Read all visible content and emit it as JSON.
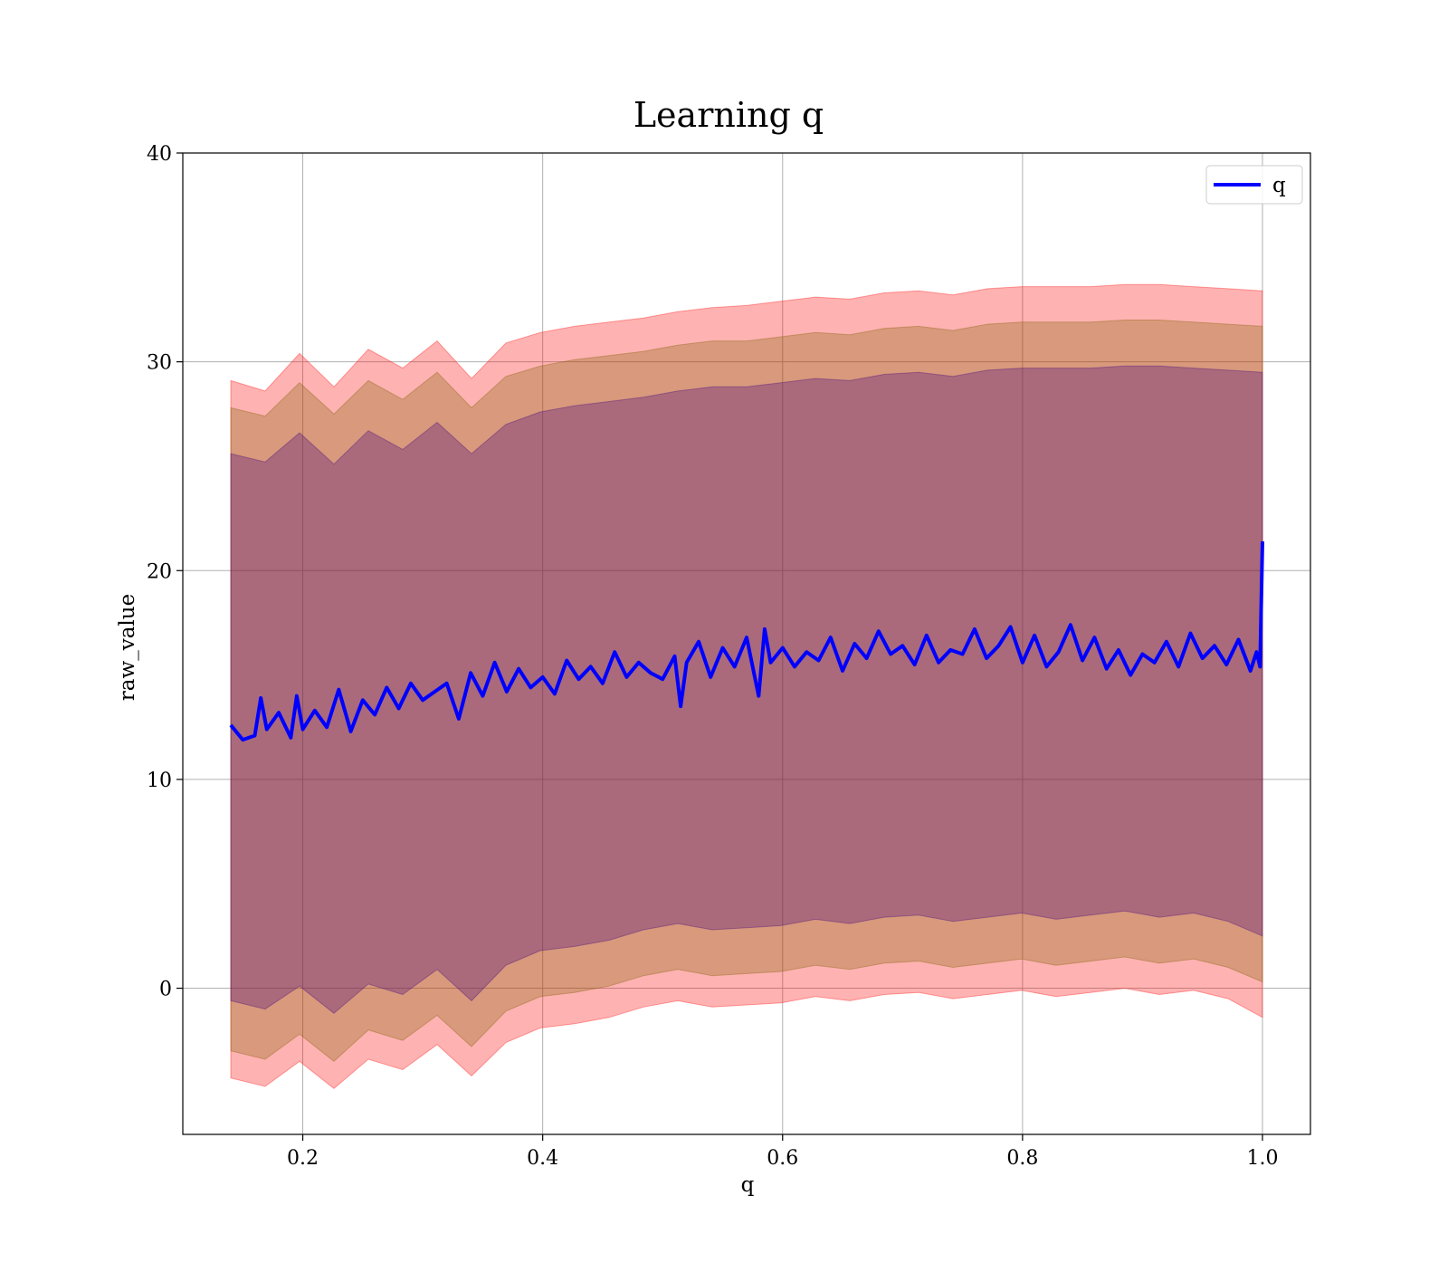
{
  "chart_data": {
    "type": "line",
    "title": "Learning q",
    "xlabel": "q",
    "ylabel": "raw_value",
    "xlim": [
      0.1,
      1.04
    ],
    "ylim": [
      -7,
      40
    ],
    "xticks": [
      0.2,
      0.4,
      0.6,
      0.8,
      1.0
    ],
    "xtick_labels": [
      "0.2",
      "0.4",
      "0.6",
      "0.8",
      "1.0"
    ],
    "yticks": [
      0,
      10,
      20,
      30,
      40
    ],
    "ytick_labels": [
      "0",
      "10",
      "20",
      "30",
      "40"
    ],
    "grid": true,
    "legend": {
      "placement": "top-right",
      "entries": [
        "q"
      ]
    },
    "series": [
      {
        "name": "q",
        "color": "#0000ff",
        "x": [
          0.14,
          0.15,
          0.16,
          0.165,
          0.17,
          0.18,
          0.19,
          0.195,
          0.2,
          0.21,
          0.22,
          0.23,
          0.24,
          0.25,
          0.26,
          0.27,
          0.28,
          0.29,
          0.3,
          0.31,
          0.32,
          0.33,
          0.34,
          0.35,
          0.36,
          0.37,
          0.38,
          0.39,
          0.4,
          0.41,
          0.42,
          0.43,
          0.44,
          0.45,
          0.46,
          0.47,
          0.48,
          0.49,
          0.5,
          0.51,
          0.515,
          0.52,
          0.53,
          0.54,
          0.55,
          0.56,
          0.57,
          0.58,
          0.585,
          0.59,
          0.6,
          0.61,
          0.62,
          0.63,
          0.64,
          0.65,
          0.66,
          0.67,
          0.68,
          0.69,
          0.7,
          0.71,
          0.72,
          0.73,
          0.74,
          0.75,
          0.76,
          0.77,
          0.78,
          0.79,
          0.8,
          0.81,
          0.82,
          0.83,
          0.84,
          0.85,
          0.86,
          0.87,
          0.88,
          0.89,
          0.9,
          0.91,
          0.92,
          0.93,
          0.94,
          0.95,
          0.96,
          0.97,
          0.98,
          0.99,
          0.995,
          0.998,
          1.0
        ],
        "y": [
          12.6,
          11.9,
          12.1,
          13.9,
          12.4,
          13.2,
          12.0,
          14.0,
          12.4,
          13.3,
          12.5,
          14.3,
          12.3,
          13.8,
          13.1,
          14.4,
          13.4,
          14.6,
          13.8,
          14.2,
          14.6,
          12.9,
          15.1,
          14.0,
          15.6,
          14.2,
          15.3,
          14.4,
          14.9,
          14.1,
          15.7,
          14.8,
          15.4,
          14.6,
          16.1,
          14.9,
          15.6,
          15.1,
          14.8,
          15.9,
          13.5,
          15.6,
          16.6,
          14.9,
          16.3,
          15.4,
          16.8,
          14.0,
          17.2,
          15.6,
          16.3,
          15.4,
          16.1,
          15.7,
          16.8,
          15.2,
          16.5,
          15.8,
          17.1,
          16.0,
          16.4,
          15.5,
          16.9,
          15.6,
          16.2,
          16.0,
          17.2,
          15.8,
          16.4,
          17.3,
          15.6,
          16.9,
          15.4,
          16.1,
          17.4,
          15.7,
          16.8,
          15.3,
          16.2,
          15.0,
          16.0,
          15.6,
          16.6,
          15.4,
          17.0,
          15.8,
          16.4,
          15.5,
          16.7,
          15.2,
          16.1,
          15.4,
          21.4
        ]
      }
    ],
    "bands": [
      {
        "color": "#ff0000",
        "opacity": 0.3,
        "upper": [
          29.1,
          28.6,
          30.4,
          28.8,
          30.6,
          29.7,
          31.0,
          29.2,
          30.9,
          31.4,
          31.7,
          31.9,
          32.1,
          32.4,
          32.6,
          32.7,
          32.9,
          33.1,
          33.0,
          33.3,
          33.4,
          33.2,
          33.5,
          33.6,
          33.6,
          33.6,
          33.7,
          33.7,
          33.6,
          33.5,
          33.4
        ],
        "lower": [
          -4.3,
          -4.7,
          -3.5,
          -4.8,
          -3.4,
          -3.9,
          -2.7,
          -4.2,
          -2.6,
          -1.9,
          -1.7,
          -1.4,
          -0.9,
          -0.6,
          -0.9,
          -0.8,
          -0.7,
          -0.4,
          -0.6,
          -0.3,
          -0.2,
          -0.5,
          -0.3,
          -0.1,
          -0.4,
          -0.2,
          0.0,
          -0.3,
          -0.1,
          -0.5,
          -1.4
        ]
      },
      {
        "color": "#7f5f00",
        "opacity": 0.3,
        "upper": [
          27.8,
          27.4,
          29.0,
          27.5,
          29.1,
          28.2,
          29.5,
          27.8,
          29.3,
          29.8,
          30.1,
          30.3,
          30.5,
          30.8,
          31.0,
          31.0,
          31.2,
          31.4,
          31.3,
          31.6,
          31.7,
          31.5,
          31.8,
          31.9,
          31.9,
          31.9,
          32.0,
          32.0,
          31.9,
          31.8,
          31.7
        ],
        "lower": [
          -3.0,
          -3.4,
          -2.2,
          -3.5,
          -2.0,
          -2.5,
          -1.3,
          -2.8,
          -1.1,
          -0.4,
          -0.2,
          0.1,
          0.6,
          0.9,
          0.6,
          0.7,
          0.8,
          1.1,
          0.9,
          1.2,
          1.3,
          1.0,
          1.2,
          1.4,
          1.1,
          1.3,
          1.5,
          1.2,
          1.4,
          1.0,
          0.3
        ]
      },
      {
        "color": "#3f007f",
        "opacity": 0.3,
        "upper": [
          25.6,
          25.2,
          26.6,
          25.1,
          26.7,
          25.8,
          27.1,
          25.6,
          27.0,
          27.6,
          27.9,
          28.1,
          28.3,
          28.6,
          28.8,
          28.8,
          29.0,
          29.2,
          29.1,
          29.4,
          29.5,
          29.3,
          29.6,
          29.7,
          29.7,
          29.7,
          29.8,
          29.8,
          29.7,
          29.6,
          29.5
        ],
        "lower": [
          -0.6,
          -1.0,
          0.1,
          -1.2,
          0.2,
          -0.3,
          0.9,
          -0.6,
          1.1,
          1.8,
          2.0,
          2.3,
          2.8,
          3.1,
          2.8,
          2.9,
          3.0,
          3.3,
          3.1,
          3.4,
          3.5,
          3.2,
          3.4,
          3.6,
          3.3,
          3.5,
          3.7,
          3.4,
          3.6,
          3.2,
          2.5
        ]
      }
    ]
  }
}
